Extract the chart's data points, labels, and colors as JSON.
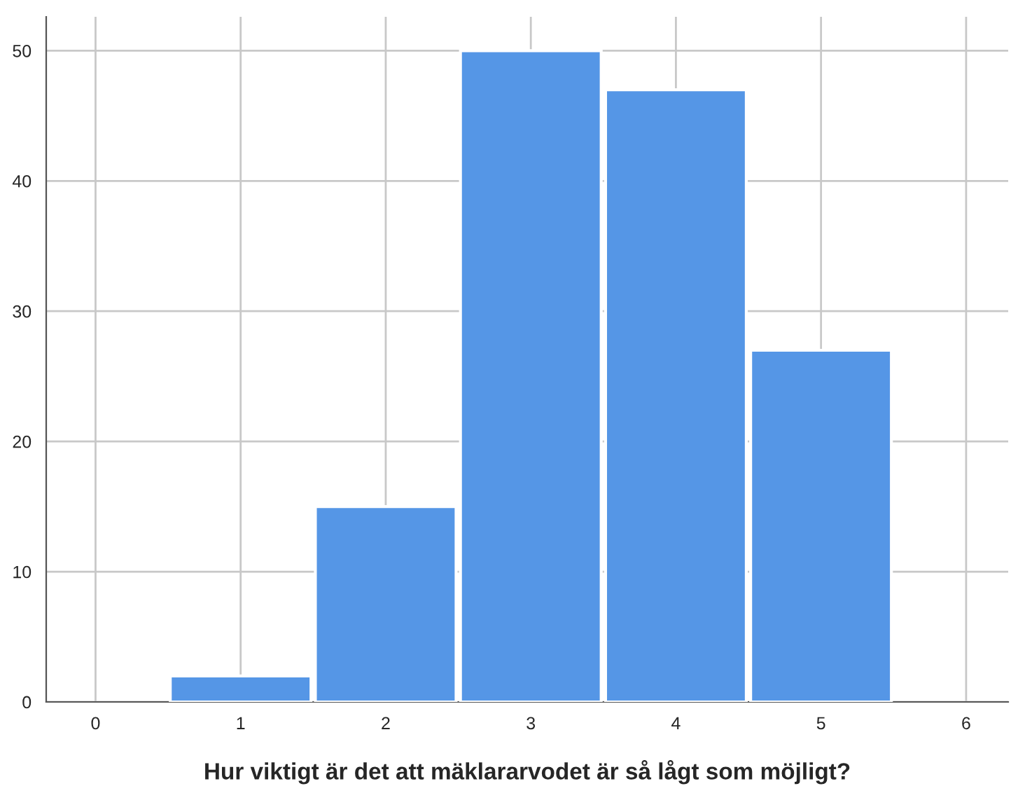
{
  "chart_data": {
    "type": "bar",
    "xlabel": "Hur viktigt är det att mäklararvodet är så lågt som möjligt?",
    "x": [
      1,
      2,
      3,
      4,
      5
    ],
    "values": [
      2,
      15,
      50,
      47,
      27
    ],
    "color": "#5596e6",
    "xlim": [
      -0.34,
      6.29
    ],
    "xticks": [
      0,
      1,
      2,
      3,
      4,
      5,
      6
    ],
    "ylim": [
      0,
      52.6
    ],
    "yticks": [
      0,
      10,
      20,
      30,
      40,
      50
    ],
    "grid": true,
    "legend": false
  }
}
